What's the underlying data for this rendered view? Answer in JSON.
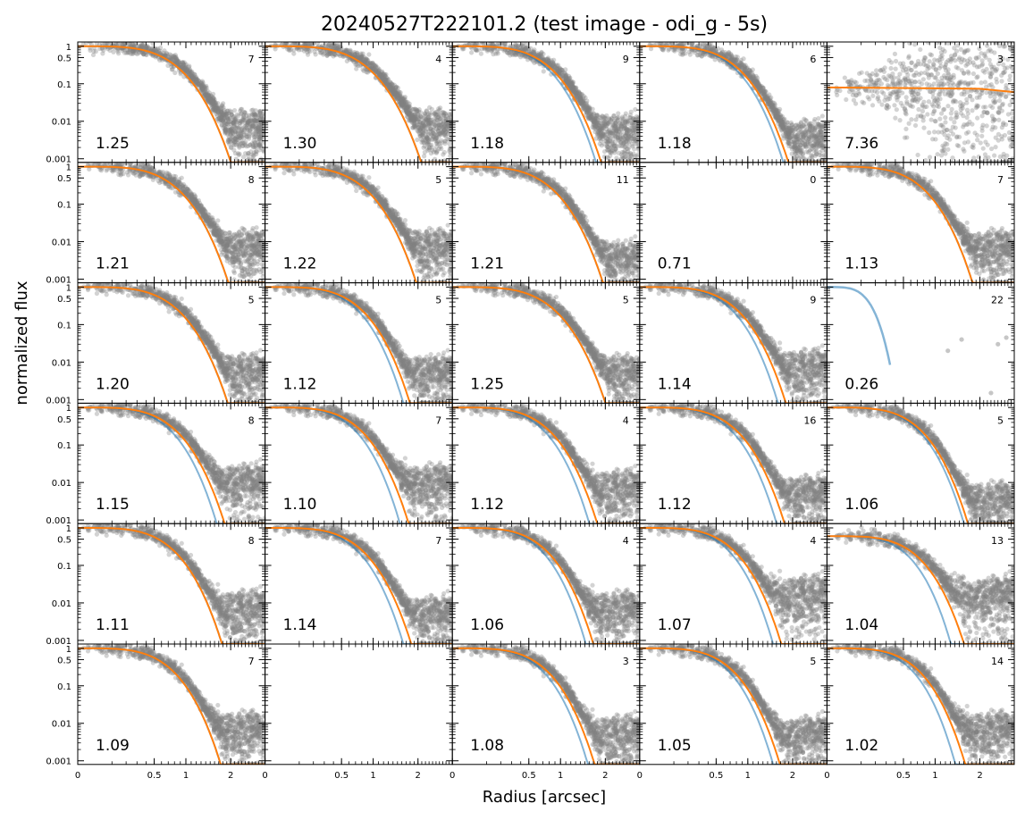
{
  "chart_data": {
    "type": "scatter",
    "title": "20240527T222101.2 (test image - odi_g - 5s)",
    "xlabel": "Radius [arcsec]",
    "ylabel": "normalized flux",
    "yscale": "log",
    "xscale": "sqrt",
    "xlim": [
      0,
      3
    ],
    "ylim": [
      0.0008,
      1.3
    ],
    "xticks": [
      {
        "value": 0,
        "label": "0"
      },
      {
        "value": 0.5,
        "label": "0.5"
      },
      {
        "value": 1,
        "label": "1"
      },
      {
        "value": 2,
        "label": "2"
      }
    ],
    "yticks": [
      {
        "value": 1,
        "label": "1"
      },
      {
        "value": 0.5,
        "label": "0.5"
      },
      {
        "value": 0.1,
        "label": "0.1"
      },
      {
        "value": 0.01,
        "label": "0.01"
      },
      {
        "value": 0.001,
        "label": "0.001"
      }
    ],
    "grid": false,
    "rows": 6,
    "cols": 5,
    "colors": {
      "points": "#808080",
      "fit_blue": "#1f77b4",
      "fit_orange": "#ff7f0e"
    },
    "panels": [
      {
        "fwhm_label": "1.25",
        "count_label": "7",
        "fwhm": 1.25,
        "blue_fwhm": 1.25,
        "noise": 0.004
      },
      {
        "fwhm_label": "1.30",
        "count_label": "4",
        "fwhm": 1.3,
        "blue_fwhm": 1.3,
        "noise": 0.004
      },
      {
        "fwhm_label": "1.18",
        "count_label": "9",
        "fwhm": 1.18,
        "blue_fwhm": 1.1,
        "noise": 0.003
      },
      {
        "fwhm_label": "1.18",
        "count_label": "6",
        "fwhm": 1.18,
        "blue_fwhm": 1.1,
        "noise": 0.002
      },
      {
        "fwhm_label": "7.36",
        "count_label": "3",
        "fwhm": 7.36,
        "blue_fwhm": 7.36,
        "noise": 0.03,
        "flat": 0.08
      },
      {
        "fwhm_label": "1.21",
        "count_label": "8",
        "fwhm": 1.21,
        "blue_fwhm": 1.21,
        "noise": 0.004
      },
      {
        "fwhm_label": "1.22",
        "count_label": "5",
        "fwhm": 1.22,
        "blue_fwhm": 1.22,
        "noise": 0.004
      },
      {
        "fwhm_label": "1.21",
        "count_label": "11",
        "fwhm": 1.21,
        "blue_fwhm": 1.21,
        "noise": 0.002
      },
      {
        "fwhm_label": "0.71",
        "count_label": "0",
        "empty": true
      },
      {
        "fwhm_label": "1.13",
        "count_label": "7",
        "fwhm": 1.13,
        "blue_fwhm": 1.13,
        "noise": 0.004
      },
      {
        "fwhm_label": "1.20",
        "count_label": "5",
        "fwhm": 1.2,
        "blue_fwhm": 1.2,
        "noise": 0.003
      },
      {
        "fwhm_label": "1.12",
        "count_label": "5",
        "fwhm": 1.12,
        "blue_fwhm": 1.02,
        "noise": 0.003
      },
      {
        "fwhm_label": "1.25",
        "count_label": "5",
        "fwhm": 1.25,
        "blue_fwhm": 1.25,
        "noise": 0.003
      },
      {
        "fwhm_label": "1.14",
        "count_label": "9",
        "fwhm": 1.14,
        "blue_fwhm": 1.02,
        "noise": 0.004
      },
      {
        "fwhm_label": "0.26",
        "count_label": "22",
        "sparse": true
      },
      {
        "fwhm_label": "1.15",
        "count_label": "8",
        "fwhm": 1.15,
        "blue_fwhm": 1.03,
        "noise": 0.006
      },
      {
        "fwhm_label": "1.10",
        "count_label": "7",
        "fwhm": 1.1,
        "blue_fwhm": 0.97,
        "noise": 0.006
      },
      {
        "fwhm_label": "1.12",
        "count_label": "4",
        "fwhm": 1.12,
        "blue_fwhm": 1.0,
        "noise": 0.004
      },
      {
        "fwhm_label": "1.12",
        "count_label": "16",
        "fwhm": 1.12,
        "blue_fwhm": 1.0,
        "noise": 0.003
      },
      {
        "fwhm_label": "1.06",
        "count_label": "5",
        "fwhm": 1.06,
        "blue_fwhm": 1.0,
        "noise": 0.002
      },
      {
        "fwhm_label": "1.11",
        "count_label": "8",
        "fwhm": 1.11,
        "blue_fwhm": 1.11,
        "noise": 0.004
      },
      {
        "fwhm_label": "1.14",
        "count_label": "7",
        "fwhm": 1.14,
        "blue_fwhm": 1.02,
        "noise": 0.003
      },
      {
        "fwhm_label": "1.06",
        "count_label": "4",
        "fwhm": 1.06,
        "blue_fwhm": 0.95,
        "noise": 0.004
      },
      {
        "fwhm_label": "1.07",
        "count_label": "4",
        "fwhm": 1.07,
        "blue_fwhm": 0.95,
        "noise": 0.01
      },
      {
        "fwhm_label": "1.04",
        "count_label": "13",
        "fwhm": 1.04,
        "blue_fwhm": 0.85,
        "noise": 0.01,
        "peak": 0.6
      },
      {
        "fwhm_label": "1.09",
        "count_label": "7",
        "fwhm": 1.09,
        "blue_fwhm": 1.09,
        "noise": 0.004
      },
      {
        "blank": true
      },
      {
        "fwhm_label": "1.08",
        "count_label": "3",
        "fwhm": 1.08,
        "blue_fwhm": 0.98,
        "noise": 0.003
      },
      {
        "fwhm_label": "1.05",
        "count_label": "5",
        "fwhm": 1.05,
        "blue_fwhm": 0.95,
        "noise": 0.003
      },
      {
        "fwhm_label": "1.02",
        "count_label": "14",
        "fwhm": 1.02,
        "blue_fwhm": 0.88,
        "noise": 0.004
      }
    ]
  }
}
